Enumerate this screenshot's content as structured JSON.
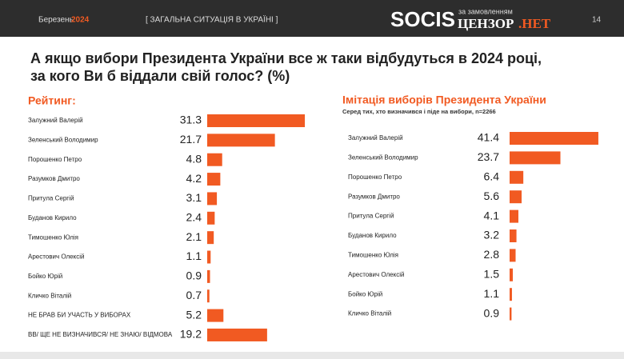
{
  "header": {
    "month": "Березень",
    "year": "2024",
    "section": "[ ЗАГАЛЬНА СИТУАЦІЯ В УКРАЇНІ ]",
    "brand": "SOCIS",
    "sponsor_note": "за замовленням",
    "sponsor": "ЦЕНЗОР",
    "sponsor_suffix": ".НЕТ",
    "page": "14"
  },
  "title": "А якщо вибори Президента України все ж таки відбудуться в 2024 році, за кого Ви б віддали свій голос? (%)",
  "chart_data": [
    {
      "type": "bar",
      "title": "Рейтинг:",
      "color": "#f15a22",
      "categories": [
        "Залужний Валерій",
        "Зеленський Володимир",
        "Порошенко Петро",
        "Разумков Дмитро",
        "Притула Сергій",
        "Буданов Кирило",
        "Тимошенко Юлія",
        "Арестович Олексій",
        "Бойко Юрій",
        "Кличко Віталій",
        "НЕ БРАВ БИ УЧАСТЬ У ВИБОРАХ",
        "ВВ/ ЩЕ НЕ ВИЗНАЧИВСЯ/ НЕ ЗНАЮ/ ВІДМОВА"
      ],
      "values": [
        31.3,
        21.7,
        4.8,
        4.2,
        3.1,
        2.4,
        2.1,
        1.1,
        0.9,
        0.7,
        5.2,
        19.2
      ]
    },
    {
      "type": "bar",
      "title": "Імітація виборів Президента України",
      "subtitle": "Серед тих, хто визначився і піде на вибори, n=2266",
      "color": "#f15a22",
      "categories": [
        "Залужний Валерій",
        "Зеленський Володимир",
        "Порошенко Петро",
        "Разумков Дмитро",
        "Притула Сергій",
        "Буданов Кирило",
        "Тимошенко Юлія",
        "Арестович Олексій",
        "Бойко Юрій",
        "Кличко Віталій"
      ],
      "values": [
        41.4,
        23.7,
        6.4,
        5.6,
        4.1,
        3.2,
        2.8,
        1.5,
        1.1,
        0.9
      ]
    }
  ]
}
